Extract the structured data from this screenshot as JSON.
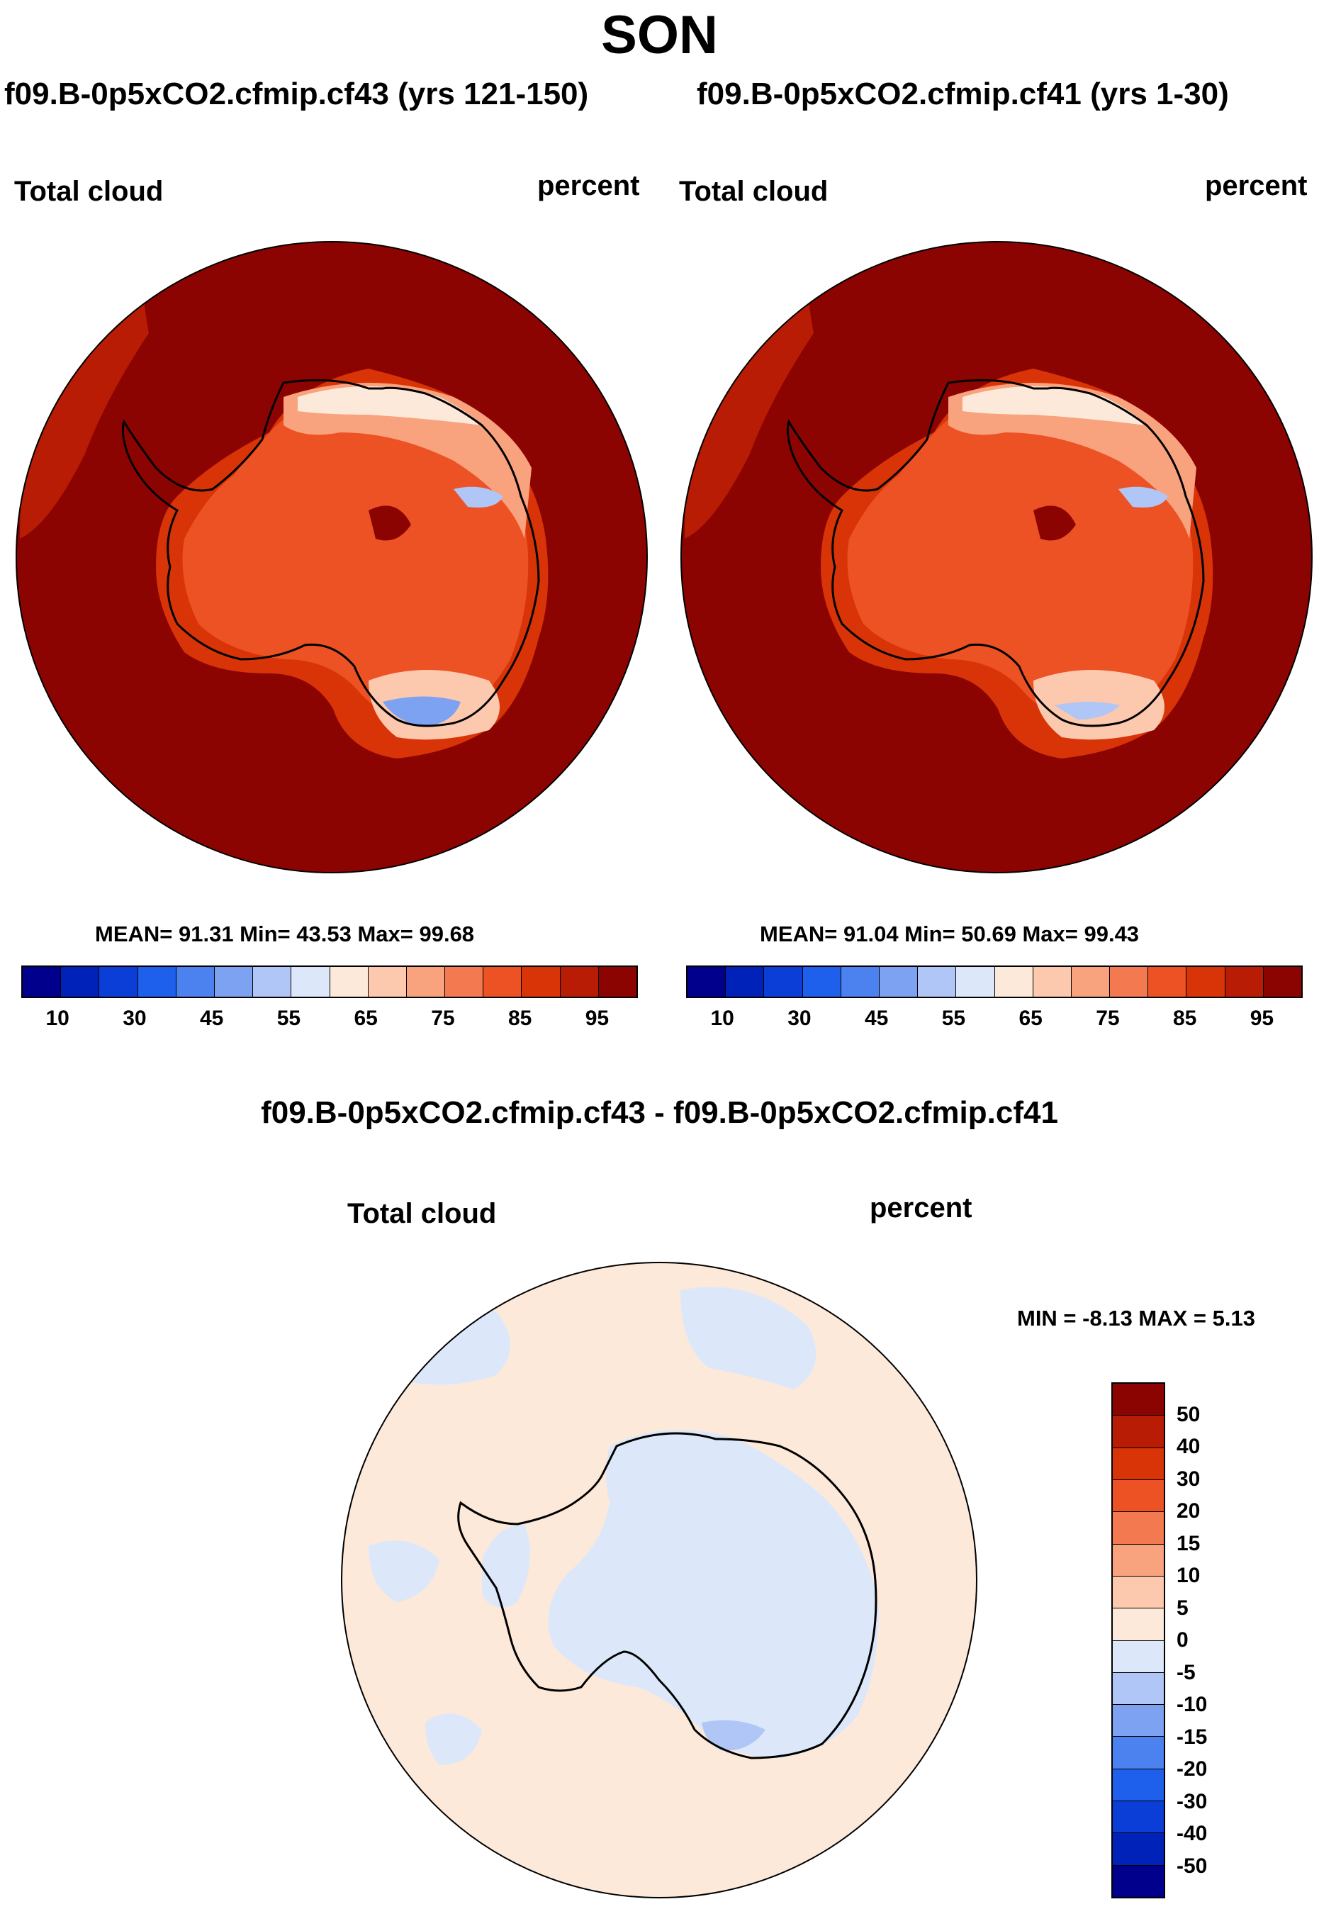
{
  "figure": {
    "title": "SON",
    "diff_title": "f09.B-0p5xCO2.cfmip.cf43 - f09.B-0p5xCO2.cfmip.cf41"
  },
  "panels": [
    {
      "title": "f09.B-0p5xCO2.cfmip.cf43 (yrs 121-150)",
      "variable": "Total cloud",
      "units": "percent",
      "stats": "MEAN=  91.31  Min=  43.53  Max=  99.68",
      "mean": 91.31,
      "min": 43.53,
      "max": 99.68
    },
    {
      "title": "f09.B-0p5xCO2.cfmip.cf41 (yrs 1-30)",
      "variable": "Total cloud",
      "units": "percent",
      "stats": "MEAN=  91.04  Min=  50.69  Max=  99.43",
      "mean": 91.04,
      "min": 50.69,
      "max": 99.43
    }
  ],
  "diff_panel": {
    "variable": "Total cloud",
    "units": "percent",
    "stats": "MIN =  -8.13 MAX =   5.13",
    "min": -8.13,
    "max": 5.13
  },
  "colorbar": {
    "colors": [
      "#00008c",
      "#0022b8",
      "#0a3ed6",
      "#1e60ec",
      "#4c82f0",
      "#7ea2f2",
      "#b0c6f6",
      "#dce8fa",
      "#fde9d9",
      "#fcc8ae",
      "#f9a27e",
      "#f37a50",
      "#ec5224",
      "#d83408",
      "#b81c04",
      "#8c0402"
    ],
    "tick_labels": [
      "10",
      "30",
      "45",
      "55",
      "65",
      "75",
      "85",
      "95"
    ]
  },
  "diff_colorbar": {
    "colors": [
      "#8c0402",
      "#b81c04",
      "#d83408",
      "#ec5224",
      "#f37a50",
      "#f9a27e",
      "#fcc8ae",
      "#fde9d9",
      "#dce8fa",
      "#b0c6f6",
      "#7ea2f2",
      "#4c82f0",
      "#1e60ec",
      "#0a3ed6",
      "#0022b8",
      "#00008c"
    ],
    "tick_labels": [
      "50",
      "40",
      "30",
      "20",
      "15",
      "10",
      "5",
      "0",
      "-5",
      "-10",
      "-15",
      "-20",
      "-30",
      "-40",
      "-50"
    ]
  },
  "map_colors": {
    "ocean_high": "#8c0402",
    "ring_outer": "#b81c04",
    "diff_positive": "#fde9d9",
    "diff_negative": "#dce8fa",
    "diff_more_negative": "#b0c6f6"
  }
}
